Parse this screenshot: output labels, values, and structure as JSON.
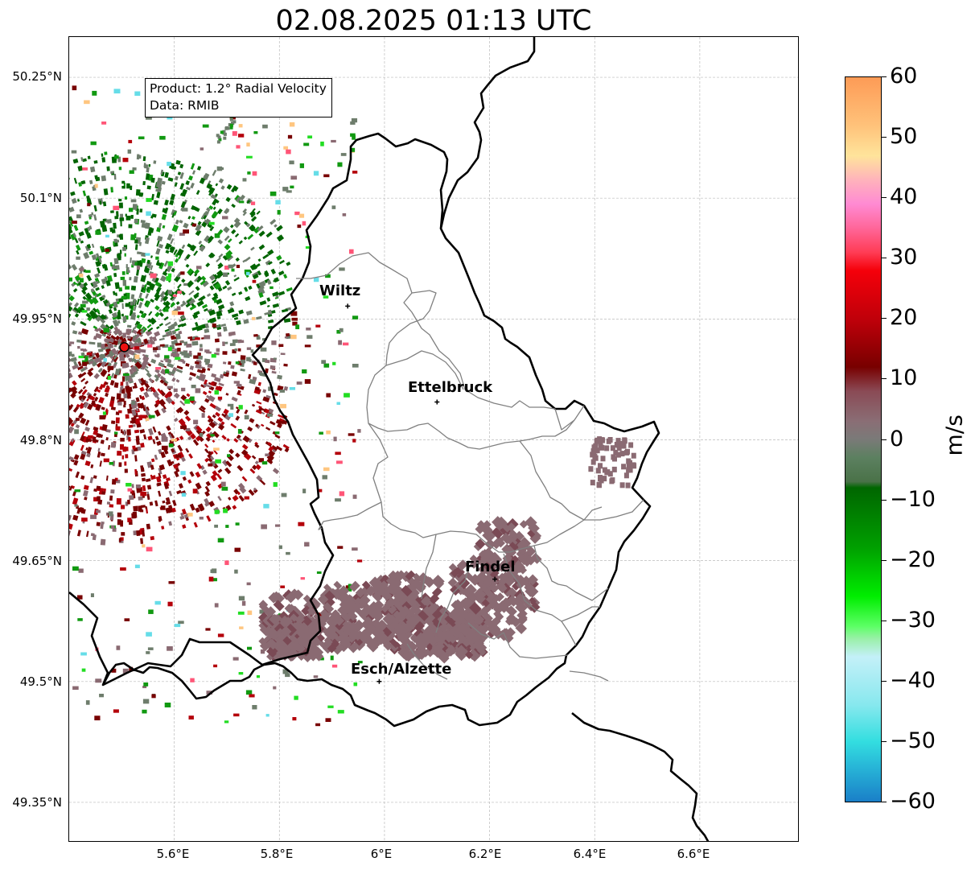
{
  "title": "02.08.2025 01:13 UTC",
  "info_box": {
    "product": "Product: 1.2° Radial Velocity",
    "source": "Data: RMIB"
  },
  "cities": [
    {
      "name": "Wiltz",
      "lon": 5.93,
      "lat": 49.966
    },
    {
      "name": "Ettelbruck",
      "lon": 6.1,
      "lat": 49.847
    },
    {
      "name": "Findel",
      "lon": 6.21,
      "lat": 49.627
    },
    {
      "name": "Esch/Alzette",
      "lon": 5.99,
      "lat": 49.5
    }
  ],
  "radar_site": {
    "lon": 5.505,
    "lat": 49.915
  },
  "axes": {
    "lat_ticks": [
      "50.25°N",
      "50.1°N",
      "49.95°N",
      "49.8°N",
      "49.65°N",
      "49.5°N",
      "49.35°N"
    ],
    "lon_ticks": [
      "5.6°E",
      "5.8°E",
      "6°E",
      "6.2°E",
      "6.4°E",
      "6.6°E"
    ],
    "lon_range": [
      5.4,
      6.79
    ],
    "lat_range": [
      49.3,
      50.3
    ],
    "grid": true
  },
  "colorbar": {
    "label": "m/s",
    "min": -60,
    "max": 60,
    "ticks": [
      "60",
      "50",
      "40",
      "30",
      "20",
      "10",
      "0",
      "−10",
      "−20",
      "−30",
      "−40",
      "−50",
      "−60"
    ],
    "stops": [
      {
        "v": 60,
        "c": "#fd9b56"
      },
      {
        "v": 52,
        "c": "#ffc27a"
      },
      {
        "v": 47,
        "c": "#ffe49b"
      },
      {
        "v": 43,
        "c": "#ffb3bb"
      },
      {
        "v": 39,
        "c": "#ff8ad3"
      },
      {
        "v": 35,
        "c": "#ff6699"
      },
      {
        "v": 31,
        "c": "#ff3c55"
      },
      {
        "v": 28,
        "c": "#f5000a"
      },
      {
        "v": 20,
        "c": "#c0000a"
      },
      {
        "v": 12,
        "c": "#780000"
      },
      {
        "v": 8,
        "c": "#8a4a55"
      },
      {
        "v": 3,
        "c": "#8a6e75"
      },
      {
        "v": 0,
        "c": "#7a7a78"
      },
      {
        "v": -3,
        "c": "#5c8060"
      },
      {
        "v": -7,
        "c": "#4a7248"
      },
      {
        "v": -8,
        "c": "#006600"
      },
      {
        "v": -18,
        "c": "#00a000"
      },
      {
        "v": -26,
        "c": "#00ee00"
      },
      {
        "v": -31,
        "c": "#5dff66"
      },
      {
        "v": -33,
        "c": "#99f0a8"
      },
      {
        "v": -36,
        "c": "#c4f0f8"
      },
      {
        "v": -44,
        "c": "#87e8ee"
      },
      {
        "v": -50,
        "c": "#33dee0"
      },
      {
        "v": -54,
        "c": "#28b8d8"
      },
      {
        "v": -60,
        "c": "#1a7fc8"
      }
    ]
  },
  "echo_colors": {
    "red": "#b4000a",
    "darkred": "#780000",
    "mauve": "#8a6a72",
    "grey_green": "#6e7d6c",
    "green": "#119911",
    "bright_green": "#22dd22",
    "dark_green": "#006400",
    "cyan": "#66dde8",
    "pink": "#ff5577",
    "orange": "#ffc680"
  }
}
